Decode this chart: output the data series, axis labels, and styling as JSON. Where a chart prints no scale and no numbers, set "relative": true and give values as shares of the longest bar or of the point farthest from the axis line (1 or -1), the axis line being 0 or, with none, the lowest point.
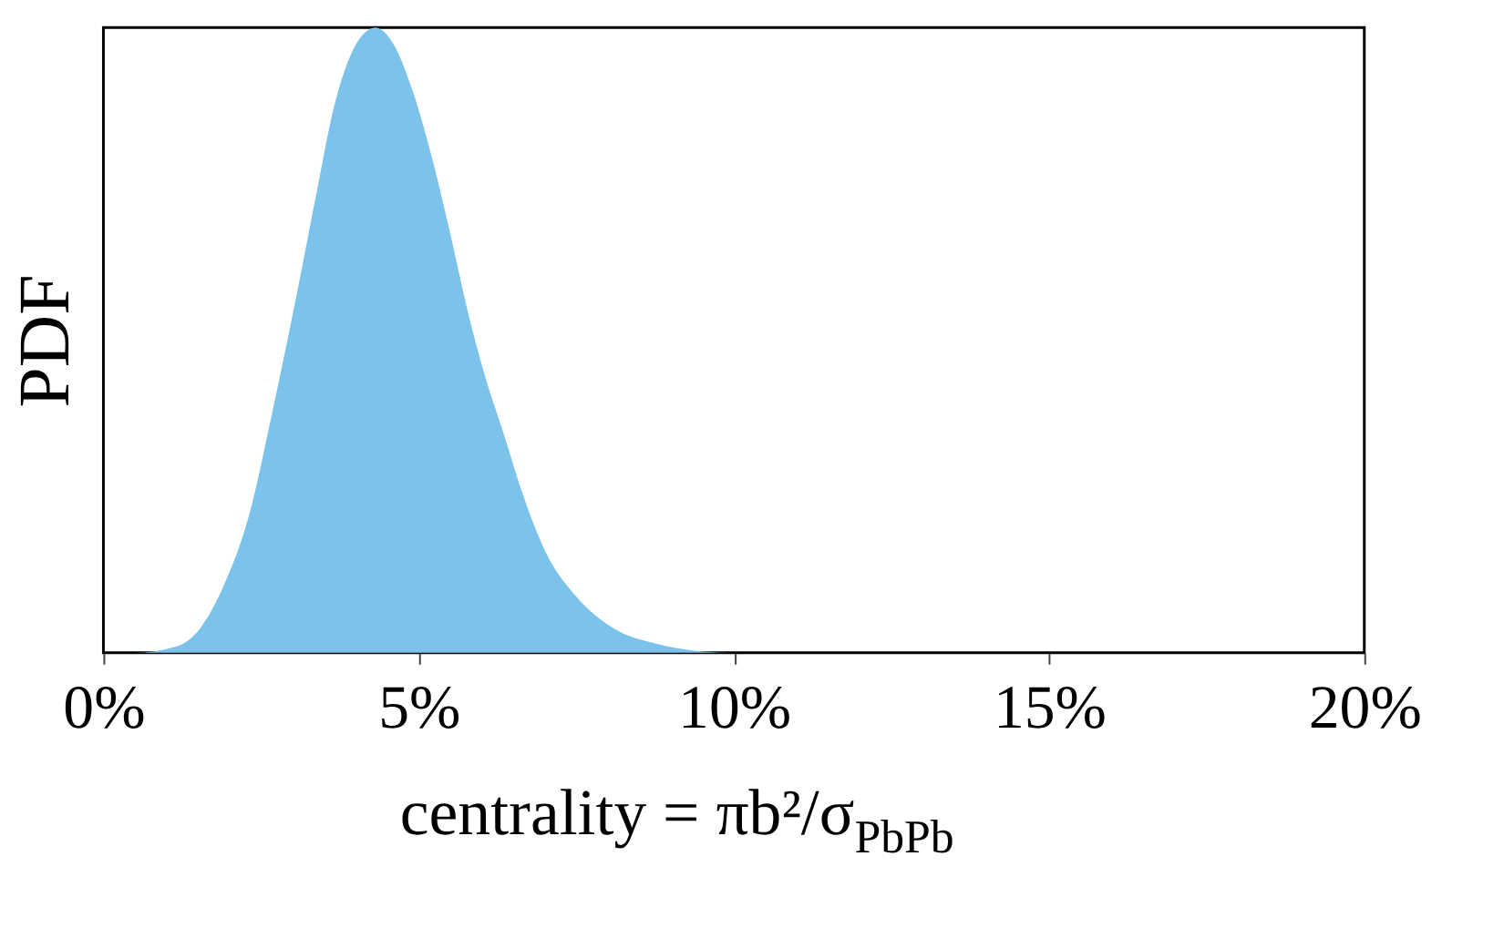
{
  "chart_data": {
    "type": "area",
    "relative": true,
    "xlabel": "centrality = πb²/σ$_{PbPb}$",
    "ylabel": "PDF",
    "x": [
      0,
      0.48,
      1.15,
      1.54,
      1.92,
      2.31,
      2.69,
      3.08,
      3.37,
      3.65,
      3.94,
      4.13,
      4.31,
      4.62,
      4.9,
      5.19,
      5.48,
      5.77,
      6.06,
      6.35,
      6.63,
      7.02,
      7.5,
      8.08,
      8.75,
      9.52,
      10,
      20
    ],
    "series": [
      {
        "color": "#7bc3eb",
        "values": [
          0,
          0,
          0.01,
          0.04,
          0.11,
          0.22,
          0.39,
          0.58,
          0.73,
          0.87,
          0.96,
          0.99,
          1.0,
          0.97,
          0.9,
          0.8,
          0.68,
          0.55,
          0.44,
          0.35,
          0.26,
          0.16,
          0.09,
          0.04,
          0.015,
          0.002,
          0,
          0
        ]
      }
    ],
    "xlim": [
      0,
      20
    ],
    "xticks": [
      {
        "value": 0,
        "label": "0%"
      },
      {
        "value": 5,
        "label": "5%"
      },
      {
        "value": 10,
        "label": "10%"
      },
      {
        "value": 15,
        "label": "15%"
      },
      {
        "value": 20,
        "label": "20%"
      }
    ],
    "grid": false,
    "tick_labels": "x"
  }
}
